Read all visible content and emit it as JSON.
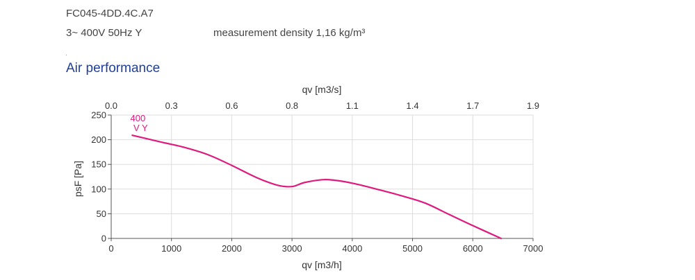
{
  "header": {
    "model": "FC045-4DD.4C.A7",
    "supply": "3~ 400V 50Hz Y",
    "density": "measurement density 1,16 kg/m³"
  },
  "section": {
    "title": "Air performance"
  },
  "chart_data": {
    "type": "line",
    "title": "",
    "xlabel": "qv [m3/h]",
    "x2label": "qv [m3/s]",
    "ylabel": "psF [Pa]",
    "xlim": [
      0,
      7000
    ],
    "x2lim": [
      0.0,
      1.944
    ],
    "ylim": [
      0,
      250
    ],
    "xticks": [
      "0",
      "1000",
      "2000",
      "3000",
      "4000",
      "5000",
      "6000",
      "7000"
    ],
    "x2ticks": [
      "0.0",
      "0.3",
      "0.6",
      "0.8",
      "1.1",
      "1.4",
      "1.7",
      "1.9"
    ],
    "yticks": [
      "0",
      "50",
      "100",
      "150",
      "200",
      "250"
    ],
    "grid": true,
    "series": [
      {
        "name": "400 V Y",
        "color": "#e0197d",
        "x": [
          350,
          800,
          1200,
          1600,
          2000,
          2400,
          2750,
          3000,
          3200,
          3500,
          3700,
          4000,
          4400,
          4800,
          5200,
          5600,
          6000,
          6470
        ],
        "y": [
          209,
          196,
          185,
          170,
          148,
          124,
          108,
          105,
          113,
          119,
          118,
          112,
          100,
          87,
          72,
          49,
          26,
          0
        ]
      }
    ]
  }
}
